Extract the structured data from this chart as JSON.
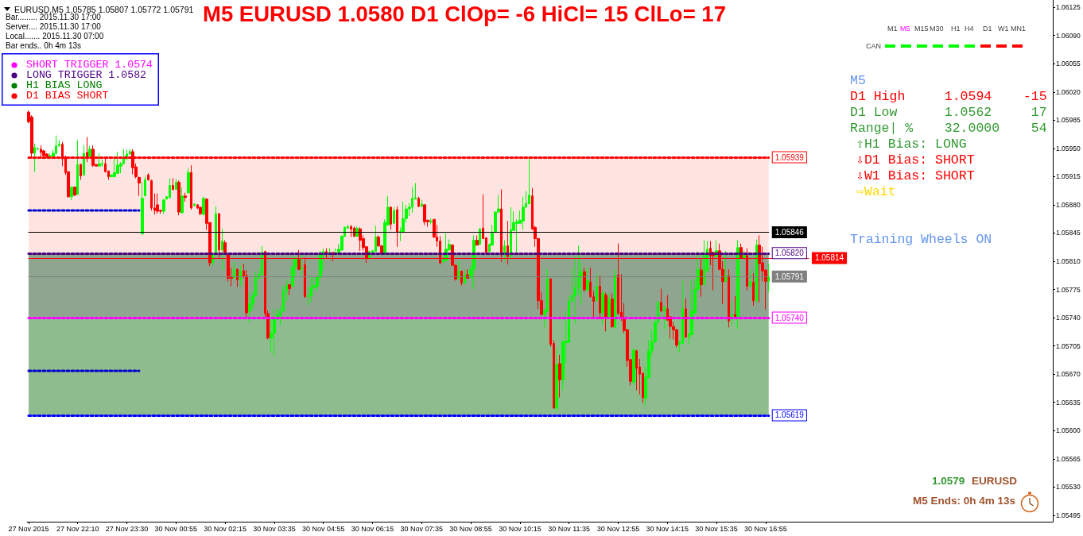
{
  "chart_data": {
    "type": "candlestick",
    "title": "M5 EURUSD 1.0580 D1 ClOp= -6 HiCl= 15 ClLo= 17",
    "subtitle": "EURUSD,M5 1.05785 1.05807 1.05772 1.05791",
    "categories": [
      "27 Nov 2015",
      null,
      null,
      null,
      null,
      null,
      null,
      null,
      null,
      null,
      null,
      null,
      null,
      null,
      null,
      null,
      "27 Nov 22:10",
      null,
      null,
      null,
      null,
      null,
      null,
      null,
      null,
      null,
      null,
      null,
      null,
      null,
      null,
      null,
      "27 Nov 23:30",
      null,
      null,
      null,
      null,
      null,
      null,
      null,
      null,
      null,
      null,
      null,
      null,
      null,
      null,
      null,
      "30 Nov 00:55",
      null,
      null,
      null,
      null,
      null,
      null,
      null,
      null,
      null,
      null,
      null,
      null,
      null,
      null,
      null,
      "30 Nov 02:15",
      null,
      null,
      null,
      null,
      null,
      null,
      null,
      null,
      null,
      null,
      null,
      null,
      null,
      null,
      null,
      "30 Nov 03:35",
      null,
      null,
      null,
      null,
      null,
      null,
      null,
      null,
      null,
      null,
      null,
      null,
      null,
      null,
      null,
      "30 Nov 04:55",
      null,
      null,
      null,
      null,
      null,
      null,
      null,
      null,
      null,
      null,
      null,
      null,
      null,
      null,
      null,
      "30 Nov 06:15",
      null,
      null,
      null,
      null,
      null,
      null,
      null,
      null,
      null,
      null,
      null,
      null,
      null,
      null,
      null,
      "30 Nov 07:35",
      null,
      null,
      null,
      null,
      null,
      null,
      null,
      null,
      null,
      null,
      null,
      null,
      null,
      null,
      null,
      "30 Nov 08:55",
      null,
      null,
      null,
      null,
      null,
      null,
      null,
      null,
      null,
      null,
      null,
      null,
      null,
      null,
      null,
      "30 Nov 10:15",
      null,
      null,
      null,
      null,
      null,
      null,
      null,
      null,
      null,
      null,
      null,
      null,
      null,
      null,
      null,
      "30 Nov 11:35",
      null,
      null,
      null,
      null,
      null,
      null,
      null,
      null,
      null,
      null,
      null,
      null,
      null,
      null,
      null,
      "30 Nov 12:55",
      null,
      null,
      null,
      null,
      null,
      null,
      null,
      null,
      null,
      null,
      null,
      null,
      null,
      null,
      null,
      "30 Nov 14:15",
      null,
      null,
      null,
      null,
      null,
      null,
      null,
      null,
      null,
      null,
      null,
      null,
      null,
      null,
      null,
      "30 Nov 15:35",
      null,
      null,
      null,
      null,
      null,
      null,
      null,
      null,
      null,
      null,
      null,
      null,
      null,
      null,
      null,
      "30 Nov 16:55",
      null,
      null,
      null,
      null,
      null,
      null,
      null,
      null,
      null,
      null,
      null,
      null,
      null,
      null,
      null,
      null,
      null,
      null,
      null,
      null,
      null,
      null,
      null,
      null,
      null,
      null,
      null,
      null,
      null,
      null,
      null,
      null,
      null,
      null,
      null,
      null,
      null,
      null,
      null,
      null,
      null,
      null,
      null,
      null,
      null,
      null,
      null,
      null,
      null,
      null,
      null,
      null,
      null,
      null,
      null,
      null,
      null,
      null,
      null,
      null,
      null,
      null,
      null,
      null,
      null,
      null,
      null,
      null,
      null,
      null,
      null,
      null,
      null,
      null,
      null,
      null,
      null,
      null,
      null,
      null,
      null,
      null,
      null,
      null,
      null,
      null,
      null,
      null,
      null,
      null,
      null,
      null,
      null
    ],
    "ohlc": [
      [
        1.05995,
        1.05997,
        1.05981,
        1.05983
      ],
      [
        1.05989,
        1.05991,
        1.05939,
        1.05944
      ],
      [
        1.05944,
        1.05956,
        1.05921,
        1.05951
      ],
      [
        1.05949,
        1.05951,
        1.05948,
        1.0595
      ],
      [
        1.05949,
        1.05954,
        1.05939,
        1.05945
      ],
      [
        1.05947,
        1.05948,
        1.0594,
        1.05941
      ],
      [
        1.05943,
        1.05944,
        1.05939,
        1.0594
      ],
      [
        1.0594,
        1.05944,
        1.05939,
        1.05941
      ],
      [
        1.0594,
        1.05948,
        1.05939,
        1.05944
      ],
      [
        1.05944,
        1.05966,
        1.05942,
        1.05953
      ],
      [
        1.05953,
        1.0596,
        1.05952,
        1.05955
      ],
      [
        1.05955,
        1.05958,
        1.05928,
        1.05937
      ],
      [
        1.05939,
        1.05941,
        1.05917,
        1.0592
      ],
      [
        1.05921,
        1.05921,
        1.05889,
        1.0589
      ],
      [
        1.0589,
        1.05902,
        1.05886,
        1.05902
      ],
      [
        1.05902,
        1.05902,
        1.05891,
        1.05892
      ],
      [
        1.05893,
        1.0596,
        1.05892,
        1.0593
      ],
      [
        1.0593,
        1.05931,
        1.05911,
        1.05916
      ],
      [
        1.05917,
        1.05954,
        1.05916,
        1.05944
      ],
      [
        1.05945,
        1.05964,
        1.05933,
        1.0594
      ],
      [
        1.0594,
        1.05953,
        1.0594,
        1.05949
      ],
      [
        1.05949,
        1.05954,
        1.05927,
        1.05929
      ],
      [
        1.0593,
        1.0593,
        1.05928,
        1.05928
      ],
      [
        1.05928,
        1.05944,
        1.05928,
        1.05931
      ],
      [
        1.0593,
        1.05936,
        1.05927,
        1.05931
      ],
      [
        1.05931,
        1.05937,
        1.0592,
        1.05921
      ],
      [
        1.05922,
        1.05922,
        1.05911,
        1.05915
      ],
      [
        1.05915,
        1.05918,
        1.05914,
        1.05917
      ],
      [
        1.05915,
        1.05939,
        1.05914,
        1.0592
      ],
      [
        1.05919,
        1.05946,
        1.05918,
        1.05929
      ],
      [
        1.05928,
        1.05933,
        1.05919,
        1.05931
      ],
      [
        1.05931,
        1.05949,
        1.0593,
        1.05939
      ],
      [
        1.05937,
        1.05948,
        1.05936,
        1.05943
      ],
      [
        1.05943,
        1.05949,
        1.05942,
        1.05946
      ],
      [
        1.05946,
        1.05949,
        1.05918,
        1.05926
      ],
      [
        1.05927,
        1.05931,
        1.05913,
        1.05915
      ],
      [
        1.05914,
        1.05915,
        1.05891,
        1.05907
      ],
      [
        1.05844,
        1.05908,
        1.05843,
        1.05888
      ],
      [
        1.05891,
        1.05915,
        1.05891,
        1.05911
      ],
      [
        1.05917,
        1.05919,
        1.0591,
        1.05911
      ],
      [
        1.0591,
        1.05911,
        1.05873,
        1.05876
      ],
      [
        1.05876,
        1.05894,
        1.05868,
        1.05873
      ],
      [
        1.0588,
        1.05894,
        1.05869,
        1.05872
      ],
      [
        1.05873,
        1.05874,
        1.05869,
        1.05872
      ],
      [
        1.05872,
        1.05887,
        1.05869,
        1.05886
      ],
      [
        1.05887,
        1.05891,
        1.05887,
        1.0589
      ],
      [
        1.05889,
        1.05913,
        1.05888,
        1.05904
      ],
      [
        1.05904,
        1.05913,
        1.05898,
        1.05899
      ],
      [
        1.05899,
        1.05912,
        1.05899,
        1.05908
      ],
      [
        1.05908,
        1.0591,
        1.05867,
        1.05871
      ],
      [
        1.0587,
        1.05902,
        1.05869,
        1.05891
      ],
      [
        1.05891,
        1.05895,
        1.05884,
        1.05889
      ],
      [
        1.05895,
        1.05925,
        1.05893,
        1.0592
      ],
      [
        1.0592,
        1.05929,
        1.05874,
        1.05876
      ],
      [
        1.05879,
        1.05882,
        1.05878,
        1.05881
      ],
      [
        1.0588,
        1.05881,
        1.05875,
        1.05876
      ],
      [
        1.05877,
        1.05877,
        1.05867,
        1.05869
      ],
      [
        1.05868,
        1.0589,
        1.05867,
        1.05888
      ],
      [
        1.05887,
        1.05888,
        1.05849,
        1.05857
      ],
      [
        1.05858,
        1.05858,
        1.05804,
        1.05808
      ],
      [
        1.05808,
        1.05819,
        1.05805,
        1.05818
      ],
      [
        1.05819,
        1.05878,
        1.05817,
        1.05869
      ],
      [
        1.05869,
        1.0587,
        1.05813,
        1.05824
      ],
      [
        1.05824,
        1.0585,
        1.05799,
        1.05835
      ],
      [
        1.05833,
        1.05836,
        1.05819,
        1.0582
      ],
      [
        1.05819,
        1.0582,
        1.05785,
        1.05789
      ],
      [
        1.05791,
        1.05802,
        1.05779,
        1.05789
      ],
      [
        1.05789,
        1.05809,
        1.05789,
        1.058
      ],
      [
        1.058,
        1.05801,
        1.05778,
        1.05787
      ],
      [
        1.05787,
        1.05805,
        1.05779,
        1.05798
      ],
      [
        1.05798,
        1.05807,
        1.05789,
        1.05792
      ],
      [
        1.05792,
        1.05799,
        1.05741,
        1.05746
      ],
      [
        1.05748,
        1.05772,
        1.05734,
        1.05757
      ],
      [
        1.05757,
        1.05772,
        1.05751,
        1.05767
      ],
      [
        1.05767,
        1.05797,
        1.05766,
        1.0579
      ],
      [
        1.05789,
        1.05801,
        1.05789,
        1.05794
      ],
      [
        1.05793,
        1.05829,
        1.05793,
        1.05821
      ],
      [
        1.05822,
        1.05823,
        1.05741,
        1.05745
      ],
      [
        1.05745,
        1.05749,
        1.05713,
        1.05715
      ],
      [
        1.05715,
        1.05739,
        1.05697,
        1.05721
      ],
      [
        1.05721,
        1.05751,
        1.05693,
        1.05738
      ],
      [
        1.05738,
        1.05751,
        1.05737,
        1.05743
      ],
      [
        1.05742,
        1.05755,
        1.05731,
        1.05749
      ],
      [
        1.05748,
        1.05779,
        1.05748,
        1.05773
      ],
      [
        1.05773,
        1.05787,
        1.05761,
        1.0578
      ],
      [
        1.05781,
        1.05781,
        1.05768,
        1.05776
      ],
      [
        1.05779,
        1.05816,
        1.05779,
        1.05803
      ],
      [
        1.05803,
        1.05816,
        1.0579,
        1.05813
      ],
      [
        1.05812,
        1.05824,
        1.05799,
        1.058
      ],
      [
        1.058,
        1.05819,
        1.05792,
        1.05802
      ],
      [
        1.05806,
        1.05815,
        1.05765,
        1.05766
      ],
      [
        1.05766,
        1.05779,
        1.05756,
        1.05768
      ],
      [
        1.05767,
        1.05792,
        1.05759,
        1.05777
      ],
      [
        1.05777,
        1.0579,
        1.05776,
        1.0578
      ],
      [
        1.05779,
        1.05792,
        1.05772,
        1.05791
      ],
      [
        1.0579,
        1.05823,
        1.05789,
        1.05819
      ],
      [
        1.05819,
        1.05826,
        1.05798,
        1.05822
      ],
      [
        1.05822,
        1.05826,
        1.05814,
        1.05819
      ],
      [
        1.05819,
        1.05826,
        1.05818,
        1.05821
      ],
      [
        1.05821,
        1.05821,
        1.0581,
        1.05819
      ],
      [
        1.05819,
        1.05826,
        1.05818,
        1.0582
      ],
      [
        1.0582,
        1.05831,
        1.05819,
        1.05825
      ],
      [
        1.05824,
        1.05842,
        1.05823,
        1.05841
      ],
      [
        1.05841,
        1.05853,
        1.0584,
        1.05852
      ],
      [
        1.05851,
        1.05855,
        1.05851,
        1.05853
      ],
      [
        1.05853,
        1.05855,
        1.0584,
        1.0585
      ],
      [
        1.05851,
        1.05853,
        1.0584,
        1.05841
      ],
      [
        1.05841,
        1.05853,
        1.0584,
        1.05851
      ],
      [
        1.0585,
        1.05852,
        1.05823,
        1.05836
      ],
      [
        1.05838,
        1.05842,
        1.05823,
        1.05827
      ],
      [
        1.05828,
        1.05828,
        1.05808,
        1.05814
      ],
      [
        1.05814,
        1.05823,
        1.05813,
        1.05822
      ],
      [
        1.05821,
        1.05824,
        1.05821,
        1.05823
      ],
      [
        1.05822,
        1.05854,
        1.05821,
        1.0584
      ],
      [
        1.0584,
        1.05842,
        1.05828,
        1.05829
      ],
      [
        1.05829,
        1.0583,
        1.05818,
        1.05819
      ],
      [
        1.05819,
        1.05862,
        1.05818,
        1.05858
      ],
      [
        1.05855,
        1.05891,
        1.05855,
        1.05877
      ],
      [
        1.05877,
        1.05878,
        1.05849,
        1.05856
      ],
      [
        1.05857,
        1.05877,
        1.05857,
        1.05873
      ],
      [
        1.05874,
        1.05878,
        1.05828,
        1.05846
      ],
      [
        1.05846,
        1.05852,
        1.05835,
        1.05847
      ],
      [
        1.05846,
        1.05884,
        1.05845,
        1.05863
      ],
      [
        1.05863,
        1.0588,
        1.05858,
        1.05875
      ],
      [
        1.05875,
        1.05882,
        1.05866,
        1.05877
      ],
      [
        1.05877,
        1.05902,
        1.0587,
        1.05888
      ],
      [
        1.05887,
        1.05907,
        1.05887,
        1.05889
      ],
      [
        1.05888,
        1.0589,
        1.05877,
        1.05878
      ],
      [
        1.05878,
        1.05886,
        1.05877,
        1.05881
      ],
      [
        1.0588,
        1.05881,
        1.05855,
        1.05859
      ],
      [
        1.05861,
        1.05861,
        1.05853,
        1.05859
      ],
      [
        1.05859,
        1.05863,
        1.05856,
        1.0586
      ],
      [
        1.05862,
        1.05862,
        1.05839,
        1.0584
      ],
      [
        1.0584,
        1.05855,
        1.05828,
        1.05835
      ],
      [
        1.05835,
        1.05841,
        1.05806,
        1.05808
      ],
      [
        1.05809,
        1.05812,
        1.05809,
        1.05812
      ],
      [
        1.05811,
        1.05845,
        1.0581,
        1.05825
      ],
      [
        1.05824,
        1.05837,
        1.05823,
        1.05831
      ],
      [
        1.0583,
        1.05831,
        1.05804,
        1.05805
      ],
      [
        1.05805,
        1.05806,
        1.05786,
        1.05788
      ],
      [
        1.05788,
        1.0581,
        1.05787,
        1.05798
      ],
      [
        1.05798,
        1.05798,
        1.0578,
        1.05783
      ],
      [
        1.05783,
        1.05799,
        1.05782,
        1.05793
      ],
      [
        1.05793,
        1.058,
        1.05789,
        1.05789
      ],
      [
        1.0579,
        1.05805,
        1.05789,
        1.058
      ],
      [
        1.058,
        1.05842,
        1.05776,
        1.05836
      ],
      [
        1.05836,
        1.05842,
        1.0583,
        1.0583
      ],
      [
        1.05831,
        1.05851,
        1.0583,
        1.0585
      ],
      [
        1.05851,
        1.05893,
        1.05838,
        1.05838
      ],
      [
        1.05839,
        1.0584,
        1.05819,
        1.05821
      ],
      [
        1.05822,
        1.05832,
        1.05821,
        1.05831
      ],
      [
        1.0583,
        1.05855,
        1.05829,
        1.05845
      ],
      [
        1.05846,
        1.05872,
        1.05845,
        1.05871
      ],
      [
        1.05871,
        1.05892,
        1.0587,
        1.05875
      ],
      [
        1.05875,
        1.05899,
        1.05809,
        1.05818
      ],
      [
        1.05818,
        1.05836,
        1.0581,
        1.05829
      ],
      [
        1.05829,
        1.0586,
        1.05806,
        1.05816
      ],
      [
        1.05817,
        1.05877,
        1.05813,
        1.05849
      ],
      [
        1.05848,
        1.05872,
        1.05848,
        1.05858
      ],
      [
        1.05857,
        1.05862,
        1.05821,
        1.05859
      ],
      [
        1.05857,
        1.05873,
        1.05857,
        1.05861
      ],
      [
        1.0586,
        1.0589,
        1.05849,
        1.05877
      ],
      [
        1.05877,
        1.05897,
        1.05876,
        1.05882
      ],
      [
        1.05881,
        1.0594,
        1.05881,
        1.05892
      ],
      [
        1.05891,
        1.05901,
        1.05849,
        1.0585
      ],
      [
        1.05852,
        1.05854,
        1.05828,
        1.05838
      ],
      [
        1.05838,
        1.05839,
        1.05751,
        1.05761
      ],
      [
        1.05761,
        1.05772,
        1.05743,
        1.05744
      ],
      [
        1.05744,
        1.05751,
        1.05728,
        1.05749
      ],
      [
        1.05748,
        1.058,
        1.05747,
        1.05788
      ],
      [
        1.05788,
        1.05789,
        1.05704,
        1.05707
      ],
      [
        1.05708,
        1.05712,
        1.05627,
        1.05628
      ],
      [
        1.05628,
        1.05702,
        1.05624,
        1.05682
      ],
      [
        1.05683,
        1.05694,
        1.05641,
        1.05663
      ],
      [
        1.05663,
        1.05712,
        1.0565,
        1.0571
      ],
      [
        1.05709,
        1.05748,
        1.05684,
        1.05711
      ],
      [
        1.05709,
        1.05767,
        1.05709,
        1.0576
      ],
      [
        1.0576,
        1.05802,
        1.0576,
        1.05768
      ],
      [
        1.05767,
        1.05816,
        1.05732,
        1.05777
      ],
      [
        1.05777,
        1.05829,
        1.05768,
        1.05792
      ],
      [
        1.05791,
        1.05808,
        1.05756,
        1.05797
      ],
      [
        1.05797,
        1.05802,
        1.05772,
        1.05775
      ],
      [
        1.05774,
        1.05802,
        1.05773,
        1.05786
      ],
      [
        1.05784,
        1.05802,
        1.05765,
        1.05766
      ],
      [
        1.05766,
        1.05773,
        1.05741,
        1.0576
      ],
      [
        1.05761,
        1.05794,
        1.0576,
        1.05779
      ],
      [
        1.05779,
        1.05792,
        1.05738,
        1.05746
      ],
      [
        1.05746,
        1.05774,
        1.05731,
        1.0577
      ],
      [
        1.05768,
        1.05771,
        1.05723,
        1.0574
      ],
      [
        1.05741,
        1.0577,
        1.0574,
        1.05763
      ],
      [
        1.05763,
        1.0577,
        1.05727,
        1.05729
      ],
      [
        1.05728,
        1.058,
        1.05727,
        1.05793
      ],
      [
        1.05793,
        1.05832,
        1.05744,
        1.05745
      ],
      [
        1.05747,
        1.05794,
        1.05736,
        1.0574
      ],
      [
        1.0574,
        1.05758,
        1.05721,
        1.05724
      ],
      [
        1.05725,
        1.05726,
        1.05679,
        1.05687
      ],
      [
        1.05688,
        1.05689,
        1.05656,
        1.05661
      ],
      [
        1.0566,
        1.05701,
        1.05657,
        1.057
      ],
      [
        1.05699,
        1.057,
        1.0565,
        1.05677
      ],
      [
        1.05679,
        1.05689,
        1.05645,
        1.0567
      ],
      [
        1.05671,
        1.05672,
        1.05634,
        1.05641
      ],
      [
        1.0564,
        1.05679,
        1.0563,
        1.05666
      ],
      [
        1.05666,
        1.05712,
        1.05665,
        1.05699
      ],
      [
        1.05699,
        1.05725,
        1.05692,
        1.0571
      ],
      [
        1.0571,
        1.05738,
        1.05709,
        1.05734
      ],
      [
        1.05734,
        1.05761,
        1.05733,
        1.05759
      ],
      [
        1.05759,
        1.05776,
        1.05748,
        1.05748
      ],
      [
        1.05748,
        1.05755,
        1.05726,
        1.05753
      ],
      [
        1.05751,
        1.05768,
        1.05736,
        1.05737
      ],
      [
        1.05741,
        1.05742,
        1.05714,
        1.05729
      ],
      [
        1.05729,
        1.05735,
        1.05713,
        1.05725
      ],
      [
        1.05725,
        1.05726,
        1.05703,
        1.05706
      ],
      [
        1.05707,
        1.05711,
        1.05697,
        1.05709
      ],
      [
        1.05708,
        1.05786,
        1.05708,
        1.05751
      ],
      [
        1.05751,
        1.05764,
        1.05715,
        1.05716
      ],
      [
        1.05716,
        1.0572,
        1.05707,
        1.0572
      ],
      [
        1.05719,
        1.05787,
        1.05718,
        1.05748
      ],
      [
        1.05746,
        1.05788,
        1.05745,
        1.05775
      ],
      [
        1.05775,
        1.05822,
        1.05774,
        1.058
      ],
      [
        1.05799,
        1.05814,
        1.05766,
        1.05781
      ],
      [
        1.05781,
        1.05836,
        1.0578,
        1.05819
      ],
      [
        1.05798,
        1.05835,
        1.05798,
        1.05825
      ],
      [
        1.05826,
        1.05835,
        1.05805,
        1.05817
      ],
      [
        1.05821,
        1.05821,
        1.05774,
        1.05817
      ],
      [
        1.05816,
        1.05836,
        1.05815,
        1.05823
      ],
      [
        1.05823,
        1.05832,
        1.05799,
        1.058
      ],
      [
        1.058,
        1.0581,
        1.05757,
        1.05785
      ],
      [
        1.05785,
        1.05823,
        1.05784,
        1.05792
      ],
      [
        1.05792,
        1.058,
        1.05728,
        1.05736
      ],
      [
        1.05738,
        1.05761,
        1.0573,
        1.05744
      ],
      [
        1.05744,
        1.05767,
        1.05739,
        1.05739
      ],
      [
        1.05741,
        1.05836,
        1.05726,
        1.05827
      ],
      [
        1.05827,
        1.05832,
        1.05813,
        1.05814
      ],
      [
        1.05814,
        1.05823,
        1.05813,
        1.05817
      ],
      [
        1.05817,
        1.05826,
        1.05774,
        1.05779
      ],
      [
        1.05779,
        1.058,
        1.05778,
        1.05785
      ],
      [
        1.05784,
        1.05795,
        1.05755,
        1.05761
      ],
      [
        1.05761,
        1.05837,
        1.0576,
        1.0583
      ],
      [
        1.0583,
        1.05842,
        1.05759,
        1.05807
      ],
      [
        1.05808,
        1.05828,
        1.05785,
        1.05798
      ],
      [
        1.05799,
        1.058,
        1.0575,
        1.05785
      ],
      [
        1.05785,
        1.05807,
        1.05772,
        1.05791
      ],
      null,
      null,
      null,
      null,
      null,
      null,
      null,
      null,
      null,
      null,
      null,
      null,
      null,
      null,
      null,
      null,
      null,
      null,
      null,
      null,
      null,
      null,
      null,
      null,
      null,
      null,
      null,
      null,
      null,
      null,
      null,
      null,
      null,
      null,
      null,
      null,
      null,
      null,
      null,
      null,
      null,
      null,
      null,
      null,
      null,
      null,
      null,
      null,
      null,
      null,
      null,
      null,
      null,
      null,
      null,
      null,
      null,
      null,
      null,
      null,
      null,
      null,
      null,
      null,
      null,
      null,
      null,
      null,
      null,
      null,
      null,
      null,
      null,
      null,
      null,
      null,
      null,
      null,
      null,
      null,
      null,
      null,
      null,
      null,
      null,
      null,
      null,
      null,
      null,
      null,
      null,
      null
    ],
    "series": [
      {
        "type": "line",
        "color": "#0000cd",
        "values": [
          1.05873,
          1.05873,
          1.05873,
          1.05873,
          1.05873,
          1.05873,
          1.05873,
          1.05873,
          1.05873,
          1.05873,
          1.05873,
          1.05873,
          1.05873,
          1.05873,
          1.05873,
          1.05873,
          1.05873,
          1.05873,
          1.05873,
          1.05873,
          1.05873,
          1.05873,
          1.05873,
          1.05873,
          1.05873,
          1.05873,
          1.05873,
          1.05873,
          1.05873,
          1.05873,
          1.05873,
          1.05873,
          1.05873,
          1.05873,
          1.05873,
          1.05873,
          1.05873,
          null,
          null,
          null,
          null,
          null,
          null,
          null,
          null,
          null,
          null,
          null,
          null,
          null,
          null,
          null,
          null,
          null,
          null,
          null,
          null,
          null,
          null,
          null,
          null,
          null,
          null,
          null,
          null,
          null,
          null,
          null,
          null,
          null,
          null,
          null,
          null,
          null,
          null,
          null,
          null,
          null,
          null,
          null,
          null,
          null,
          null,
          null,
          null,
          null,
          null,
          null,
          null,
          null,
          null,
          null,
          null,
          null,
          null,
          null,
          null,
          null,
          null,
          null,
          null,
          null,
          null,
          null,
          null,
          null,
          null,
          null,
          null,
          null,
          null,
          null,
          null,
          null,
          null,
          null,
          null,
          null,
          null,
          null,
          null,
          null,
          null,
          null,
          null,
          null,
          null,
          null,
          null,
          null,
          null,
          null,
          null,
          null,
          null,
          null,
          null,
          null,
          null,
          null,
          null,
          null,
          null,
          null,
          null,
          null,
          null,
          null,
          null,
          null,
          null,
          null,
          null,
          null,
          null,
          null,
          null,
          null,
          null,
          null,
          null,
          null,
          null,
          null,
          null,
          null,
          null,
          null,
          null,
          null,
          null,
          null,
          null,
          null,
          null,
          null,
          null,
          null,
          null,
          null,
          null,
          null,
          null,
          null,
          null,
          null,
          null,
          null,
          null,
          null,
          null,
          null,
          null,
          null,
          null,
          null,
          null,
          null,
          null,
          null,
          null,
          null,
          null,
          null,
          null,
          null,
          null,
          null,
          null,
          null,
          null,
          null,
          null,
          null,
          null,
          null,
          null,
          null,
          null,
          null,
          null,
          null,
          null,
          null,
          null,
          null,
          null,
          null,
          null,
          null,
          null,
          null,
          null,
          null,
          null,
          null,
          null,
          null,
          null,
          null,
          null,
          null,
          null,
          null,
          null,
          null,
          null,
          null,
          null,
          null,
          null,
          null,
          null,
          null,
          null,
          null,
          null,
          null,
          null,
          null,
          null,
          null,
          null,
          null,
          null,
          null,
          null,
          null,
          null,
          null,
          null,
          null,
          null,
          null,
          null,
          null,
          null,
          null,
          null,
          null,
          null,
          null,
          null,
          null,
          null,
          null,
          null,
          null,
          null,
          null,
          null,
          null,
          null,
          null,
          null,
          null,
          null,
          null,
          null,
          null,
          null,
          null,
          null,
          null,
          null,
          null,
          null,
          null,
          null,
          null,
          null,
          null,
          null,
          null,
          null,
          null,
          null,
          null,
          null,
          null,
          null,
          null,
          null,
          null,
          null,
          null,
          null,
          null,
          null,
          null,
          null,
          null,
          null,
          null
        ]
      },
      {
        "type": "line",
        "color": "#0000cd",
        "values": [
          1.05674,
          1.05674,
          1.05674,
          1.05674,
          1.05674,
          1.05674,
          1.05674,
          1.05674,
          1.05674,
          1.05674,
          1.05674,
          1.05674,
          1.05674,
          1.05674,
          1.05674,
          1.05674,
          1.05674,
          1.05674,
          1.05674,
          1.05674,
          1.05674,
          1.05674,
          1.05674,
          1.05674,
          1.05674,
          1.05674,
          1.05674,
          1.05674,
          1.05674,
          1.05674,
          1.05674,
          1.05674,
          1.05674,
          1.05674,
          1.05674,
          1.05674,
          1.05674,
          null,
          null,
          null,
          null,
          null,
          null,
          null,
          null,
          null,
          null,
          null,
          null,
          null,
          null,
          null,
          null,
          null,
          null,
          null,
          null,
          null,
          null,
          null,
          null,
          null,
          null,
          null,
          null,
          null,
          null,
          null,
          null,
          null,
          null,
          null,
          null,
          null,
          null,
          null,
          null,
          null,
          null,
          null,
          null,
          null,
          null,
          null,
          null,
          null,
          null,
          null,
          null,
          null,
          null,
          null,
          null,
          null,
          null,
          null,
          null,
          null,
          null,
          null,
          null,
          null,
          null,
          null,
          null,
          null,
          null,
          null,
          null,
          null,
          null,
          null,
          null,
          null,
          null,
          null,
          null,
          null,
          null,
          null,
          null,
          null,
          null,
          null,
          null,
          null,
          null,
          null,
          null,
          null,
          null,
          null,
          null,
          null,
          null,
          null,
          null,
          null,
          null,
          null,
          null,
          null,
          null,
          null,
          null,
          null,
          null,
          null,
          null,
          null,
          null,
          null,
          null,
          null,
          null,
          null,
          null,
          null,
          null,
          null,
          null,
          null,
          null,
          null,
          null,
          null,
          null,
          null,
          null,
          null,
          null,
          null,
          null,
          null,
          null,
          null,
          null,
          null,
          null,
          null,
          null,
          null,
          null,
          null,
          null,
          null,
          null,
          null,
          null,
          null,
          null,
          null,
          null,
          null,
          null,
          null,
          null,
          null,
          null,
          null,
          null,
          null,
          null,
          null,
          null,
          null,
          null,
          null,
          null,
          null,
          null,
          null,
          null,
          null,
          null,
          null,
          null,
          null,
          null,
          null,
          null,
          null,
          null,
          null,
          null,
          null,
          null,
          null,
          null,
          null,
          null,
          null,
          null,
          null,
          null,
          null,
          null,
          null,
          null,
          null,
          null,
          null,
          null,
          null,
          null,
          null,
          null,
          null,
          null,
          null,
          null,
          null,
          null,
          null,
          null,
          null,
          null,
          null,
          null,
          null,
          null,
          null,
          null,
          null,
          null,
          null,
          null,
          null,
          null,
          null,
          null,
          null,
          null,
          null,
          null,
          null,
          null,
          null,
          null,
          null,
          null,
          null,
          null,
          null,
          null,
          null,
          null,
          null,
          null,
          null,
          null,
          null,
          null,
          null,
          null,
          null,
          null,
          null,
          null,
          null,
          null,
          null,
          null,
          null,
          null,
          null,
          null,
          null,
          null,
          null,
          null,
          null,
          null,
          null,
          null,
          null,
          null,
          null,
          null,
          null,
          null,
          null,
          null,
          null,
          null,
          null,
          null,
          null,
          null,
          null,
          null,
          null,
          null,
          null
        ]
      }
    ],
    "line_style": "dotted",
    "bands": [
      {
        "axis": "y",
        "from": 1.0582,
        "to": 1.05939,
        "color": "#ffe4e1"
      },
      {
        "axis": "y",
        "from": 1.0574,
        "to": 1.0582,
        "color": "#8fa58f"
      },
      {
        "axis": "y",
        "from": 1.05619,
        "to": 1.0574,
        "color": "#8fbc8f"
      }
    ],
    "ref_lines": [
      {
        "axis": "y",
        "value": 1.05939,
        "label": "1.05939",
        "color": "#ff0000",
        "line_style": "dotted"
      },
      {
        "axis": "y",
        "value": 1.05846,
        "label": "1.05846",
        "color": "#000000",
        "line_style": "solid"
      },
      {
        "axis": "y",
        "value": 1.0582,
        "label": "1.05820",
        "color": "#4b0082",
        "line_style": "dotted"
      },
      {
        "axis": "y",
        "value": 1.05814,
        "label": "1.05814",
        "color": "#ff0000",
        "line_style": "solid"
      },
      {
        "axis": "y",
        "value": 1.05791,
        "label": "1.05791",
        "color": "#808080",
        "line_style": "solid"
      },
      {
        "axis": "y",
        "value": 1.0574,
        "label": "1.05740",
        "color": "#ff00ff",
        "line_style": "dotted"
      },
      {
        "axis": "y",
        "value": 1.05619,
        "label": "1.05619",
        "color": "#0000ff",
        "line_style": "dotted"
      }
    ],
    "ylim": [
      1.05487,
      1.06134
    ],
    "yticks": [
      1.06125,
      {
        "value": 1.0609,
        "label": "1.06090"
      },
      1.06055,
      {
        "value": 1.0602,
        "label": "1.06020"
      },
      1.05985,
      {
        "value": 1.0595,
        "label": "1.05950"
      },
      1.05915,
      {
        "value": 1.0588,
        "label": "1.05880"
      },
      1.05845,
      {
        "value": 1.0581,
        "label": "1.05810"
      },
      1.05775,
      {
        "value": 1.0574,
        "label": "1.05740"
      },
      1.05705,
      {
        "value": 1.0567,
        "label": "1.05670"
      },
      1.05635,
      {
        "value": 1.056,
        "label": "1.05600"
      },
      1.05565,
      {
        "value": 1.0553,
        "label": "1.05530"
      },
      1.05495
    ],
    "annotations": [
      "Bar......... 2015.11.30 17:00",
      "Server.... 2015.11.30 17:00",
      "Local....... 2015.11.30 07:00",
      "Bar ends.. 0h 4m 13s",
      "SHORT TRIGGER 1.0574",
      "LONG TRIGGER 1.0582",
      "H1 BIAS LONG",
      "D1 BIAS SHORT",
      "M1",
      "M5",
      "M15",
      "M30",
      "H1",
      "H4",
      "D1",
      "W1",
      "MN1",
      "CAN",
      "M5",
      "D1 High     1.0594    -15",
      "D1 Low      1.0562     17",
      "Range| %    32.0000    54",
      "⇧H1 Bias: LONG",
      "⇩D1 Bias: SHORT",
      "⇩W1 Bias: SHORT",
      "⇨Wait",
      "Training Wheels ON",
      "1.0579",
      "EURUSD",
      "M5 Ends: 0h 4m 13s"
    ]
  }
}
